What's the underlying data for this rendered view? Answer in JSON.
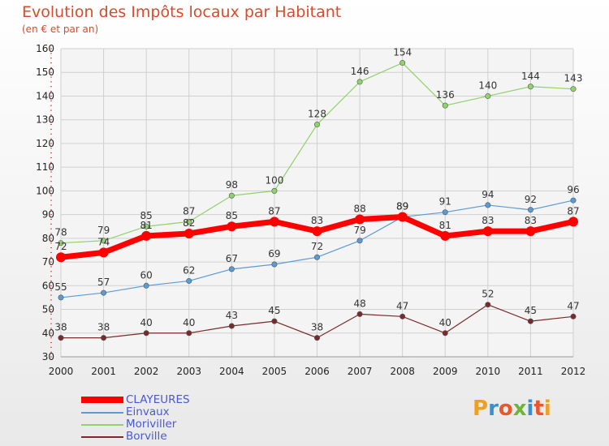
{
  "title": "Evolution des Impôts locaux par Habitant",
  "subtitle": "(en € et par an)",
  "logo": {
    "letters": [
      "P",
      "r",
      "o",
      "x",
      "i",
      "t",
      "i"
    ],
    "colors": [
      "#f0a020",
      "#3a8fd0",
      "#e8582a",
      "#6fb43a",
      "#3a8fd0",
      "#e8582a",
      "#f0a020"
    ]
  },
  "chart_data": {
    "type": "line",
    "title": "Evolution des Impôts locaux par Habitant",
    "subtitle": "(en € et par an)",
    "xlabel": "",
    "ylabel": "",
    "x": [
      "2000",
      "2001",
      "2002",
      "2003",
      "2004",
      "2005",
      "2006",
      "2007",
      "2008",
      "2009",
      "2010",
      "2011",
      "2012"
    ],
    "ylim": [
      30,
      160
    ],
    "yticks": [
      30,
      40,
      50,
      60,
      70,
      80,
      90,
      100,
      110,
      120,
      130,
      140,
      150,
      160
    ],
    "grid": true,
    "legend_position": "bottom-left",
    "series": [
      {
        "name": "CLAYEURES",
        "color": "#ff0000",
        "values": [
          72,
          74,
          81,
          82,
          85,
          87,
          83,
          88,
          89,
          81,
          83,
          83,
          87
        ]
      },
      {
        "name": "Einvaux",
        "color": "#5b9bd5",
        "values": [
          55,
          57,
          60,
          62,
          67,
          69,
          72,
          79,
          89,
          91,
          94,
          92,
          96
        ]
      },
      {
        "name": "Moriviller",
        "color": "#8fd36a",
        "values": [
          78,
          79,
          85,
          87,
          98,
          100,
          128,
          146,
          154,
          136,
          140,
          144,
          143
        ]
      },
      {
        "name": "Borville",
        "color": "#7a2a2a",
        "values": [
          38,
          38,
          40,
          40,
          43,
          45,
          38,
          48,
          47,
          40,
          52,
          45,
          47
        ]
      }
    ]
  }
}
